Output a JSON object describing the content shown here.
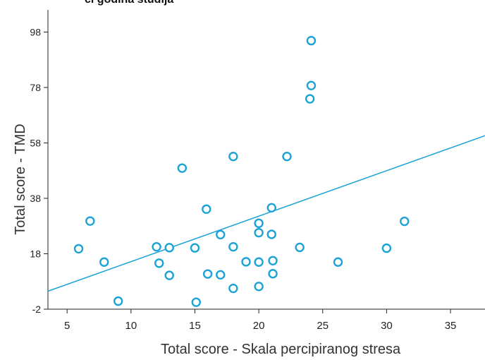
{
  "chart_data": {
    "type": "scatter",
    "title": "ci godina studija",
    "xlabel": "Total score - Skala percipiranog stresa",
    "ylabel": "Total score - TMD",
    "xlim": [
      3.5,
      37.7
    ],
    "ylim": [
      -2,
      106
    ],
    "x_ticks": [
      5,
      10,
      15,
      20,
      25,
      30,
      35
    ],
    "y_ticks": [
      -2,
      18,
      38,
      58,
      78,
      98
    ],
    "grid": false,
    "legend": "none",
    "points": [
      {
        "x": 5.9,
        "y": 19.8
      },
      {
        "x": 6.8,
        "y": 29.8
      },
      {
        "x": 7.9,
        "y": 15.0
      },
      {
        "x": 9.0,
        "y": 0.9
      },
      {
        "x": 12.0,
        "y": 20.5
      },
      {
        "x": 12.2,
        "y": 14.6
      },
      {
        "x": 13.0,
        "y": 20.2
      },
      {
        "x": 13.0,
        "y": 10.2
      },
      {
        "x": 14.0,
        "y": 48.9
      },
      {
        "x": 15.0,
        "y": 20.1
      },
      {
        "x": 15.1,
        "y": 0.5
      },
      {
        "x": 15.9,
        "y": 34.1
      },
      {
        "x": 16.0,
        "y": 10.7
      },
      {
        "x": 17.0,
        "y": 24.9
      },
      {
        "x": 17.0,
        "y": 10.4
      },
      {
        "x": 18.0,
        "y": 53.1
      },
      {
        "x": 18.0,
        "y": 20.5
      },
      {
        "x": 18.0,
        "y": 5.5
      },
      {
        "x": 19.0,
        "y": 15.1
      },
      {
        "x": 20.0,
        "y": 29.0
      },
      {
        "x": 20.0,
        "y": 25.6
      },
      {
        "x": 20.0,
        "y": 15.0
      },
      {
        "x": 20.0,
        "y": 6.2
      },
      {
        "x": 21.0,
        "y": 34.6
      },
      {
        "x": 21.0,
        "y": 25.0
      },
      {
        "x": 21.1,
        "y": 15.5
      },
      {
        "x": 21.1,
        "y": 10.8
      },
      {
        "x": 22.2,
        "y": 53.1
      },
      {
        "x": 23.2,
        "y": 20.3
      },
      {
        "x": 24.1,
        "y": 94.9
      },
      {
        "x": 24.1,
        "y": 78.7
      },
      {
        "x": 24.0,
        "y": 73.9
      },
      {
        "x": 26.2,
        "y": 15.0
      },
      {
        "x": 30.0,
        "y": 20.0
      },
      {
        "x": 31.4,
        "y": 29.7
      }
    ],
    "fit_line": {
      "x": [
        3.5,
        37.7
      ],
      "y": [
        4.5,
        60.6
      ]
    },
    "colors": {
      "marker": "#1ba3d6",
      "line": "#1ba3d6",
      "axis": "#222222"
    }
  }
}
